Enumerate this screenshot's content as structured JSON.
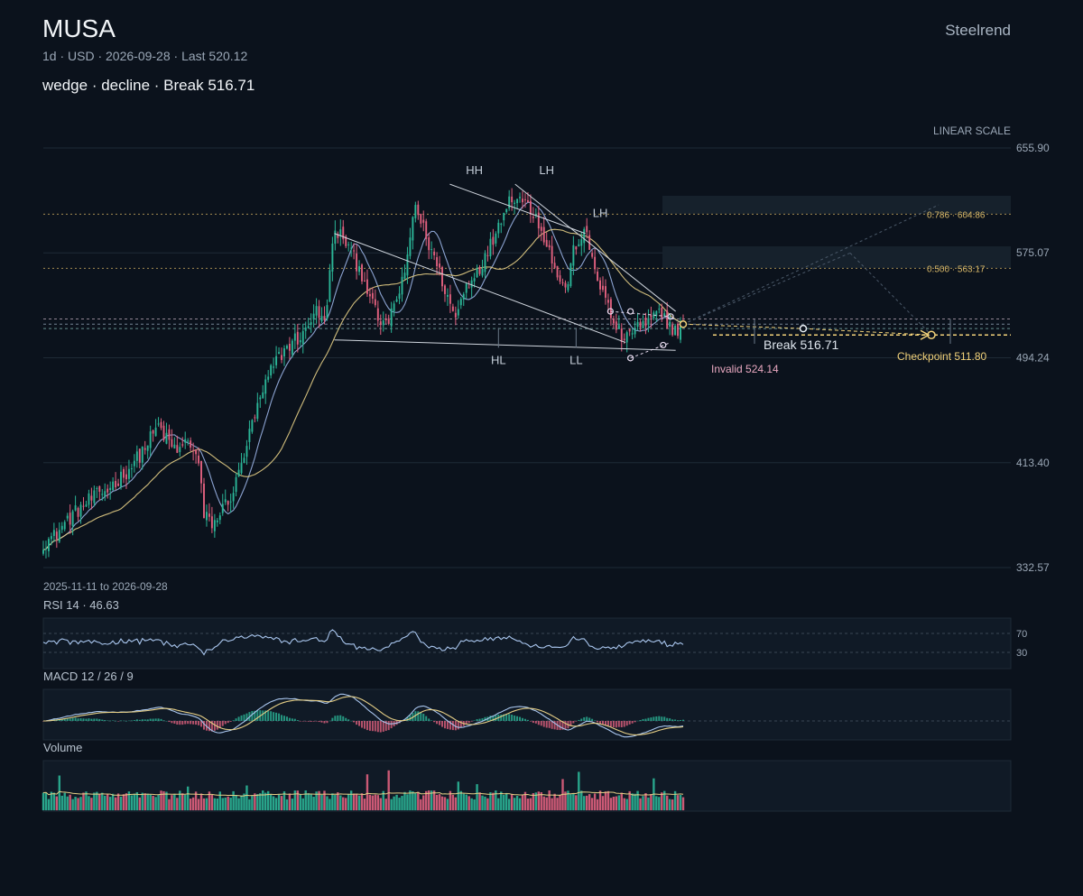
{
  "header": {
    "ticker": "MUSA",
    "meta": "1d · USD · 2026-09-28 · Last 520.12",
    "pattern_line": "wedge · decline · Break 516.71",
    "brand": "Steelrend"
  },
  "colors": {
    "background": "#0b121c",
    "up": "#2bb597",
    "down": "#e0607e",
    "ma_fast": "#9ab4e6",
    "ma_slow": "#e6cf86",
    "accent": "#f2d27a",
    "invalid": "#e8a8c0",
    "grid": "#1e2a36"
  },
  "chart_data": [
    {
      "type": "candlestick",
      "title": "MUSA",
      "scale_label": "LINEAR SCALE",
      "date_range": "2025-11-11 to 2026-09-28",
      "ylim": [
        332.57,
        655.9
      ],
      "y_ticks": [
        655.9,
        575.07,
        494.24,
        413.4,
        332.57
      ],
      "y_tick_labels": [
        "655.90",
        "575.07",
        "494.24",
        "413.40",
        "332.57"
      ],
      "n_bars": 240,
      "anchors": [
        [
          0,
          352
        ],
        [
          4,
          356
        ],
        [
          10,
          370
        ],
        [
          18,
          384
        ],
        [
          25,
          392
        ],
        [
          32,
          404
        ],
        [
          38,
          418
        ],
        [
          42,
          430
        ],
        [
          46,
          442
        ],
        [
          50,
          428
        ],
        [
          54,
          422
        ],
        [
          58,
          432
        ],
        [
          62,
          412
        ],
        [
          64,
          372
        ],
        [
          68,
          366
        ],
        [
          72,
          380
        ],
        [
          76,
          392
        ],
        [
          80,
          420
        ],
        [
          84,
          448
        ],
        [
          88,
          470
        ],
        [
          92,
          490
        ],
        [
          96,
          500
        ],
        [
          100,
          508
        ],
        [
          104,
          512
        ],
        [
          108,
          532
        ],
        [
          112,
          520
        ],
        [
          116,
          592
        ],
        [
          120,
          586
        ],
        [
          124,
          570
        ],
        [
          128,
          555
        ],
        [
          132,
          530
        ],
        [
          136,
          516
        ],
        [
          140,
          536
        ],
        [
          144,
          556
        ],
        [
          148,
          614
        ],
        [
          152,
          590
        ],
        [
          156,
          570
        ],
        [
          160,
          548
        ],
        [
          164,
          524
        ],
        [
          168,
          548
        ],
        [
          172,
          560
        ],
        [
          176,
          570
        ],
        [
          180,
          590
        ],
        [
          184,
          612
        ],
        [
          188,
          620
        ],
        [
          192,
          614
        ],
        [
          196,
          605
        ],
        [
          200,
          586
        ],
        [
          204,
          562
        ],
        [
          208,
          545
        ],
        [
          212,
          582
        ],
        [
          216,
          590
        ],
        [
          220,
          562
        ],
        [
          224,
          538
        ],
        [
          228,
          518
        ],
        [
          232,
          506
        ],
        [
          236,
          520
        ],
        [
          240,
          518
        ],
        [
          244,
          528
        ],
        [
          248,
          524
        ],
        [
          252,
          514
        ],
        [
          255,
          520.12
        ]
      ],
      "ma_fast_period": 10,
      "ma_slow_period": 30,
      "swing_labels": [
        {
          "text": "HH",
          "index": 161,
          "value": 630,
          "pos": "above"
        },
        {
          "text": "LH",
          "index": 188,
          "value": 630,
          "pos": "above"
        },
        {
          "text": "LH",
          "index": 208,
          "value": 597,
          "pos": "above"
        },
        {
          "text": "HL",
          "index": 170,
          "value": 502,
          "pos": "below"
        },
        {
          "text": "LL",
          "index": 199,
          "value": 502,
          "pos": "below"
        }
      ],
      "horizontal_levels": [
        {
          "label": "0.786 · 604.86",
          "value": 604.86
        },
        {
          "label": "0.500 · 563.17",
          "value": 563.17
        }
      ],
      "break_label": "Break 516.71",
      "break_value": 516.71,
      "invalid_label": "Invalid 524.14",
      "invalid_value": 524.14,
      "checkpoint_label": "Checkpoint 511.80",
      "checkpoint_value": 511.8,
      "last_value": 520.12
    },
    {
      "type": "line",
      "title": "RSI 14 · 46.63",
      "last_value": 46.63,
      "ylim": [
        0,
        100
      ],
      "levels": [
        70,
        30
      ],
      "level_labels": [
        "70",
        "30"
      ]
    },
    {
      "type": "line",
      "title": "MACD 12 / 26 / 9",
      "series_desc": [
        "MACD",
        "Signal",
        "Histogram"
      ]
    },
    {
      "type": "bar",
      "title": "Volume"
    }
  ]
}
